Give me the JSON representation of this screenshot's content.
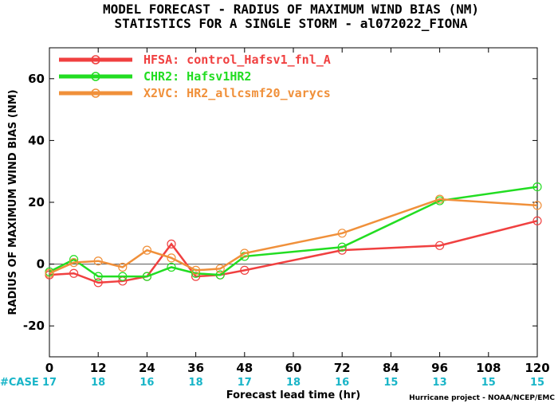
{
  "title_line1": "MODEL FORECAST - RADIUS OF MAXIMUM WIND BIAS (NM)",
  "title_line2": "STATISTICS FOR A SINGLE STORM - al072022_FIONA",
  "credit": "Hurricane project - NOAA/NCEP/EMC",
  "case_label": "#CASE",
  "chart_data": {
    "type": "line",
    "title": "MODEL FORECAST - RADIUS OF MAXIMUM WIND BIAS (NM)",
    "subtitle": "STATISTICS FOR A SINGLE STORM - al072022_FIONA",
    "xlabel": "Forecast lead time (hr)",
    "ylabel": "RADIUS OF MAXIMUM WIND BIAS (NM)",
    "xlim": [
      0,
      120
    ],
    "ylim": [
      -30,
      70
    ],
    "xticks": [
      0,
      12,
      24,
      36,
      48,
      60,
      72,
      84,
      96,
      108,
      120
    ],
    "yticks": [
      -20,
      0,
      20,
      40,
      60
    ],
    "zero_line": true,
    "legend_position": "top-left",
    "case_counts": [
      17,
      18,
      16,
      18,
      17,
      18,
      16,
      15,
      13,
      15,
      15
    ],
    "series": [
      {
        "name": "HFSA: control_Hafsv1_fnl_A",
        "color": "#f04040",
        "x": [
          0,
          6,
          12,
          18,
          24,
          30,
          36,
          42,
          48,
          72,
          96,
          120
        ],
        "y": [
          -3.5,
          -3.0,
          -6.0,
          -5.5,
          -4.0,
          6.5,
          -4.0,
          -3.5,
          -2.0,
          4.5,
          6.0,
          14.0
        ]
      },
      {
        "name": "CHR2: Hafsv1HR2",
        "color": "#22dd22",
        "x": [
          0,
          6,
          12,
          18,
          24,
          30,
          36,
          42,
          48,
          72,
          96,
          120
        ],
        "y": [
          -2.5,
          1.5,
          -4.0,
          -4.0,
          -4.0,
          -1.0,
          -3.0,
          -3.5,
          2.5,
          5.5,
          20.5,
          25.0
        ]
      },
      {
        "name": "X2VC: HR2_allcsmf20_varycs",
        "color": "#f0903a",
        "x": [
          0,
          6,
          12,
          18,
          24,
          30,
          36,
          42,
          48,
          72,
          96,
          120
        ],
        "y": [
          -3.0,
          0.5,
          1.0,
          -1.0,
          4.5,
          2.0,
          -2.0,
          -1.5,
          3.5,
          10.0,
          21.0,
          19.0
        ]
      }
    ]
  }
}
